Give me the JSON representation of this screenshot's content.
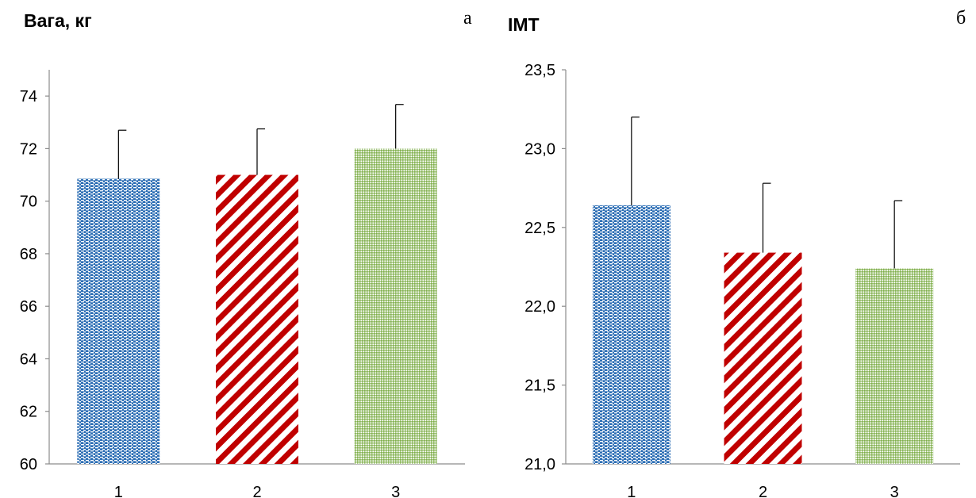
{
  "chart_data": [
    {
      "type": "bar",
      "panel": "а",
      "title": "Вага, кг",
      "categories": [
        "1",
        "2",
        "3"
      ],
      "values": [
        70.85,
        71.0,
        72.0
      ],
      "errors": [
        1.85,
        1.75,
        1.68
      ],
      "ylim": [
        60,
        75
      ],
      "yticks": [
        "60",
        "62",
        "64",
        "66",
        "68",
        "70",
        "72",
        "74"
      ],
      "ytick_values": [
        60,
        62,
        64,
        66,
        68,
        70,
        72,
        74
      ],
      "grid": false,
      "bar_patterns": [
        "dots-blue",
        "diagonal-stripes-red",
        "fine-dots-green"
      ],
      "colors": [
        "#2e6fb5",
        "#c00000",
        "#7fae4b"
      ]
    },
    {
      "type": "bar",
      "panel": "б",
      "title": "ІМТ",
      "categories": [
        "1",
        "2",
        "3"
      ],
      "values": [
        22.64,
        22.34,
        22.24
      ],
      "errors": [
        0.56,
        0.44,
        0.43
      ],
      "ylim": [
        21.0,
        23.5
      ],
      "yticks": [
        "21,0",
        "21,5",
        "22,0",
        "22,5",
        "23,0",
        "23,5"
      ],
      "ytick_values": [
        21.0,
        21.5,
        22.0,
        22.5,
        23.0,
        23.5
      ],
      "grid": false,
      "bar_patterns": [
        "dots-blue",
        "diagonal-stripes-red",
        "fine-dots-green"
      ],
      "colors": [
        "#2e6fb5",
        "#c00000",
        "#7fae4b"
      ]
    }
  ]
}
